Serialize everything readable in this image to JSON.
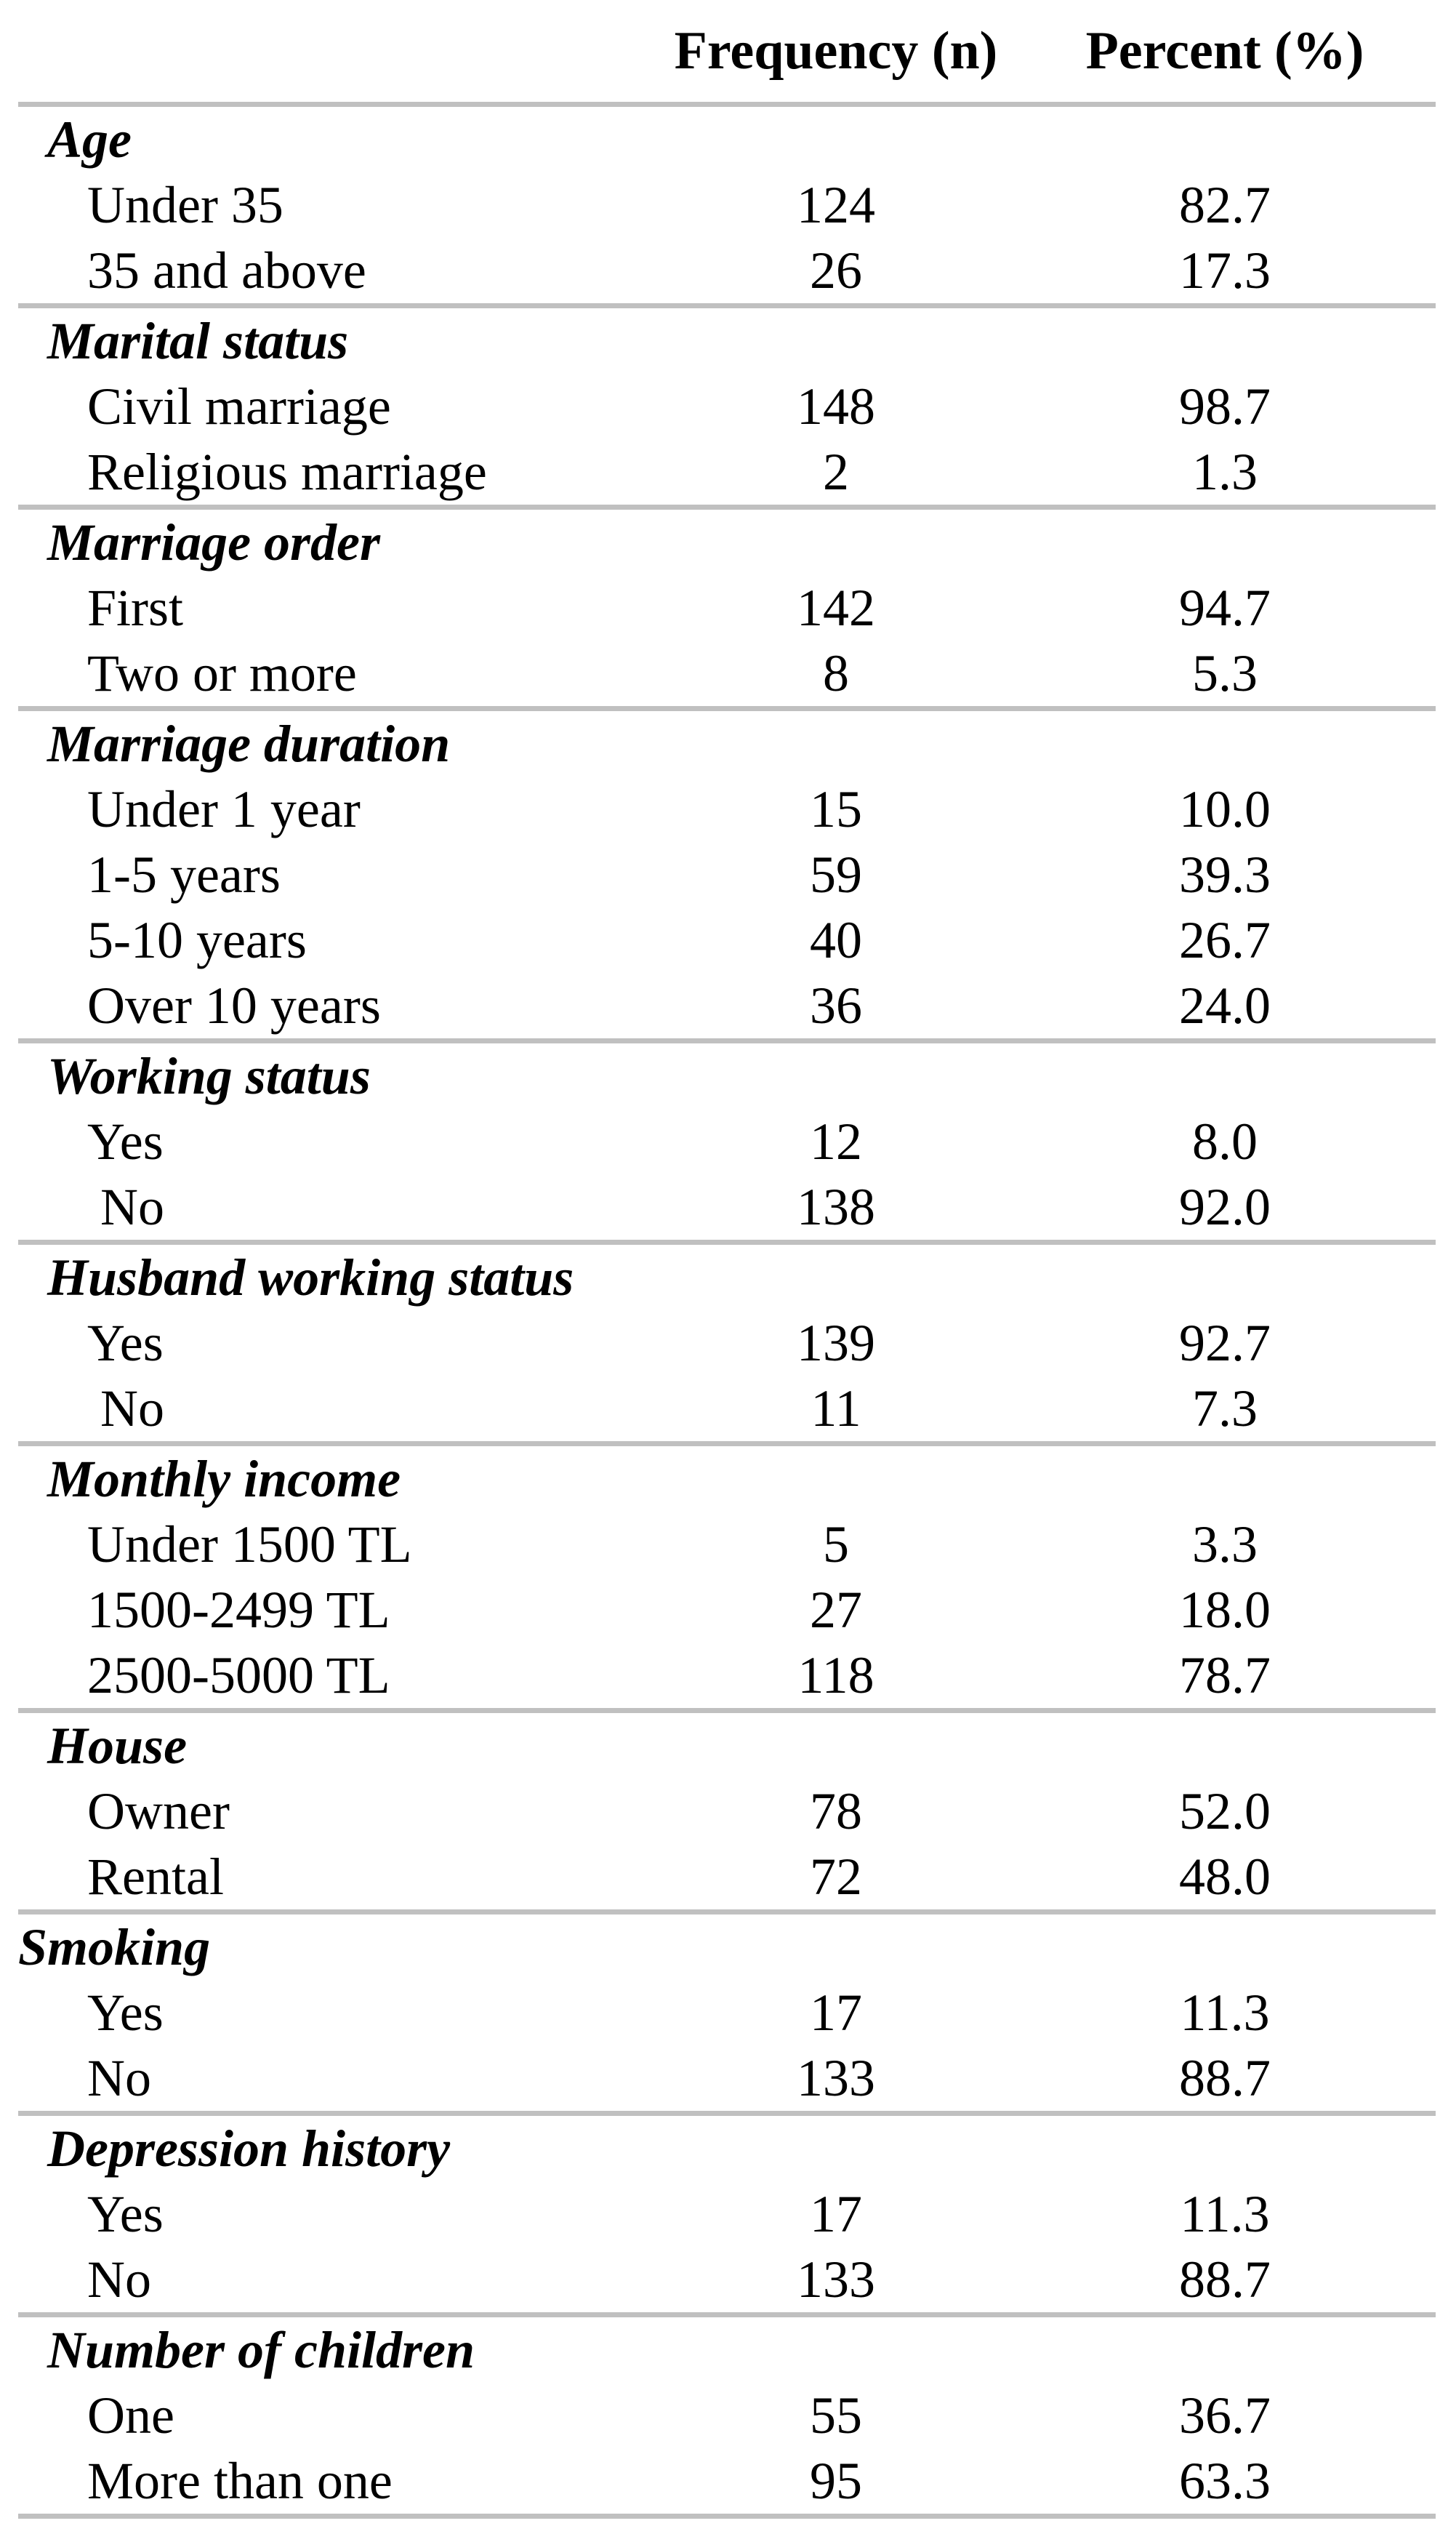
{
  "colors": {
    "rule": "#c0c0c0",
    "text": "#000000",
    "background": "#ffffff"
  },
  "table": {
    "columns": {
      "label": "",
      "frequency": "Frequency (n)",
      "percent": "Percent (%)"
    },
    "sections": [
      {
        "title": "Age",
        "indent": 1,
        "rows": [
          {
            "label": "Under 35",
            "frequency": "124",
            "percent": "82.7"
          },
          {
            "label": "35 and above",
            "frequency": "26",
            "percent": "17.3"
          }
        ]
      },
      {
        "title": "Marital status",
        "indent": 1,
        "rows": [
          {
            "label": "Civil marriage",
            "frequency": "148",
            "percent": "98.7"
          },
          {
            "label": "Religious marriage",
            "frequency": "2",
            "percent": "1.3"
          }
        ]
      },
      {
        "title": "Marriage order",
        "indent": 1,
        "rows": [
          {
            "label": "First",
            "frequency": "142",
            "percent": "94.7"
          },
          {
            "label": "Two or more",
            "frequency": "8",
            "percent": "5.3"
          }
        ]
      },
      {
        "title": "Marriage duration",
        "indent": 1,
        "rows": [
          {
            "label": "Under 1 year",
            "frequency": "15",
            "percent": "10.0"
          },
          {
            "label": "1-5 years",
            "frequency": "59",
            "percent": "39.3"
          },
          {
            "label": "5-10 years",
            "frequency": "40",
            "percent": "26.7"
          },
          {
            "label": "Over 10 years",
            "frequency": "36",
            "percent": "24.0"
          }
        ]
      },
      {
        "title": "Working status",
        "indent": 1,
        "rows": [
          {
            "label": "Yes",
            "frequency": "12",
            "percent": "8.0"
          },
          {
            "label": " No",
            "frequency": "138",
            "percent": "92.0"
          }
        ]
      },
      {
        "title": "Husband working status",
        "indent": 1,
        "rows": [
          {
            "label": "Yes",
            "frequency": "139",
            "percent": "92.7"
          },
          {
            "label": " No",
            "frequency": "11",
            "percent": "7.3"
          }
        ]
      },
      {
        "title": "Monthly income",
        "indent": 1,
        "rows": [
          {
            "label": "Under 1500 TL",
            "frequency": "5",
            "percent": "3.3"
          },
          {
            "label": "1500-2499 TL",
            "frequency": "27",
            "percent": "18.0"
          },
          {
            "label": "2500-5000 TL",
            "frequency": "118",
            "percent": "78.7"
          }
        ]
      },
      {
        "title": "House",
        "indent": 1,
        "rows": [
          {
            "label": "Owner",
            "frequency": "78",
            "percent": "52.0"
          },
          {
            "label": "Rental",
            "frequency": "72",
            "percent": "48.0"
          }
        ]
      },
      {
        "title": "Smoking",
        "indent": 0,
        "rows": [
          {
            "label": "Yes",
            "frequency": "17",
            "percent": "11.3"
          },
          {
            "label": "No",
            "frequency": "133",
            "percent": "88.7"
          }
        ]
      },
      {
        "title": "Depression history",
        "indent": 1,
        "rows": [
          {
            "label": "Yes",
            "frequency": "17",
            "percent": "11.3"
          },
          {
            "label": "No",
            "frequency": "133",
            "percent": "88.7"
          }
        ]
      },
      {
        "title": "Number of children",
        "indent": 1,
        "rows": [
          {
            "label": "One",
            "frequency": "55",
            "percent": "36.7"
          },
          {
            "label": "More than one",
            "frequency": "95",
            "percent": "63.3"
          }
        ]
      }
    ]
  }
}
